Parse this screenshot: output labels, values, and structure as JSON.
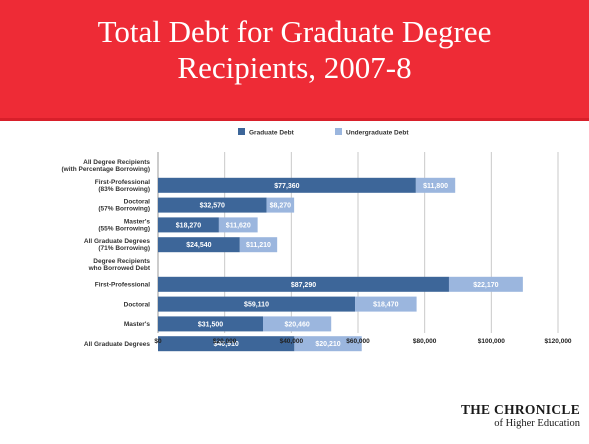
{
  "slide": {
    "title": "Total Debt for Graduate Degree\nRecipients, 2007-8"
  },
  "logo": {
    "line1": "THE CHRONICLE",
    "line2": "of Higher Education"
  },
  "chart_data": {
    "type": "bar",
    "orientation": "horizontal",
    "stacked": true,
    "title": "",
    "xlabel": "",
    "ylabel": "",
    "xlim": [
      0,
      120000
    ],
    "grid": true,
    "legend_position": "top",
    "colors": {
      "graduate": "#3d6699",
      "undergraduate": "#9bb6de"
    },
    "series": [
      {
        "name": "Graduate Debt",
        "color": "#3d6699"
      },
      {
        "name": "Undergraduate Debt",
        "color": "#9bb6de"
      }
    ],
    "x_ticks": [
      {
        "value": 0,
        "label": "$0"
      },
      {
        "value": 20000,
        "label": "$20,000"
      },
      {
        "value": 40000,
        "label": "$40,000"
      },
      {
        "value": 60000,
        "label": "$60,000"
      },
      {
        "value": 80000,
        "label": "$80,000"
      },
      {
        "value": 100000,
        "label": "$100,000"
      },
      {
        "value": 120000,
        "label": "$120,000"
      }
    ],
    "categories": [
      {
        "label": "All Degree Recipients\n(with Percentage Borrowing)",
        "header": true
      },
      {
        "label": "First-Professional\n(83% Borrowing)",
        "graduate": 77360,
        "graduate_label": "$77,360",
        "undergraduate": 11800,
        "undergraduate_label": "$11,800"
      },
      {
        "label": "Doctoral\n(57% Borrowing)",
        "graduate": 32570,
        "graduate_label": "$32,570",
        "undergraduate": 8270,
        "undergraduate_label": "$8,270"
      },
      {
        "label": "Master's\n(55% Borrowing)",
        "graduate": 18270,
        "graduate_label": "$18,270",
        "undergraduate": 11620,
        "undergraduate_label": "$11,620"
      },
      {
        "label": "All Graduate Degrees\n(71% Borrowing)",
        "graduate": 24540,
        "graduate_label": "$24,540",
        "undergraduate": 11210,
        "undergraduate_label": "$11,210"
      },
      {
        "label": "Degree Recipients\nwho Borrowed Debt",
        "header": true
      },
      {
        "label": "First-Professional",
        "graduate": 87290,
        "graduate_label": "$87,290",
        "undergraduate": 22170,
        "undergraduate_label": "$22,170"
      },
      {
        "label": "Doctoral",
        "graduate": 59110,
        "graduate_label": "$59,110",
        "undergraduate": 18470,
        "undergraduate_label": "$18,470"
      },
      {
        "label": "Master's",
        "graduate": 31500,
        "graduate_label": "$31,500",
        "undergraduate": 20460,
        "undergraduate_label": "$20,460"
      },
      {
        "label": "All Graduate Degrees",
        "graduate": 40910,
        "graduate_label": "$40,910",
        "undergraduate": 20210,
        "undergraduate_label": "$20,210"
      }
    ]
  }
}
